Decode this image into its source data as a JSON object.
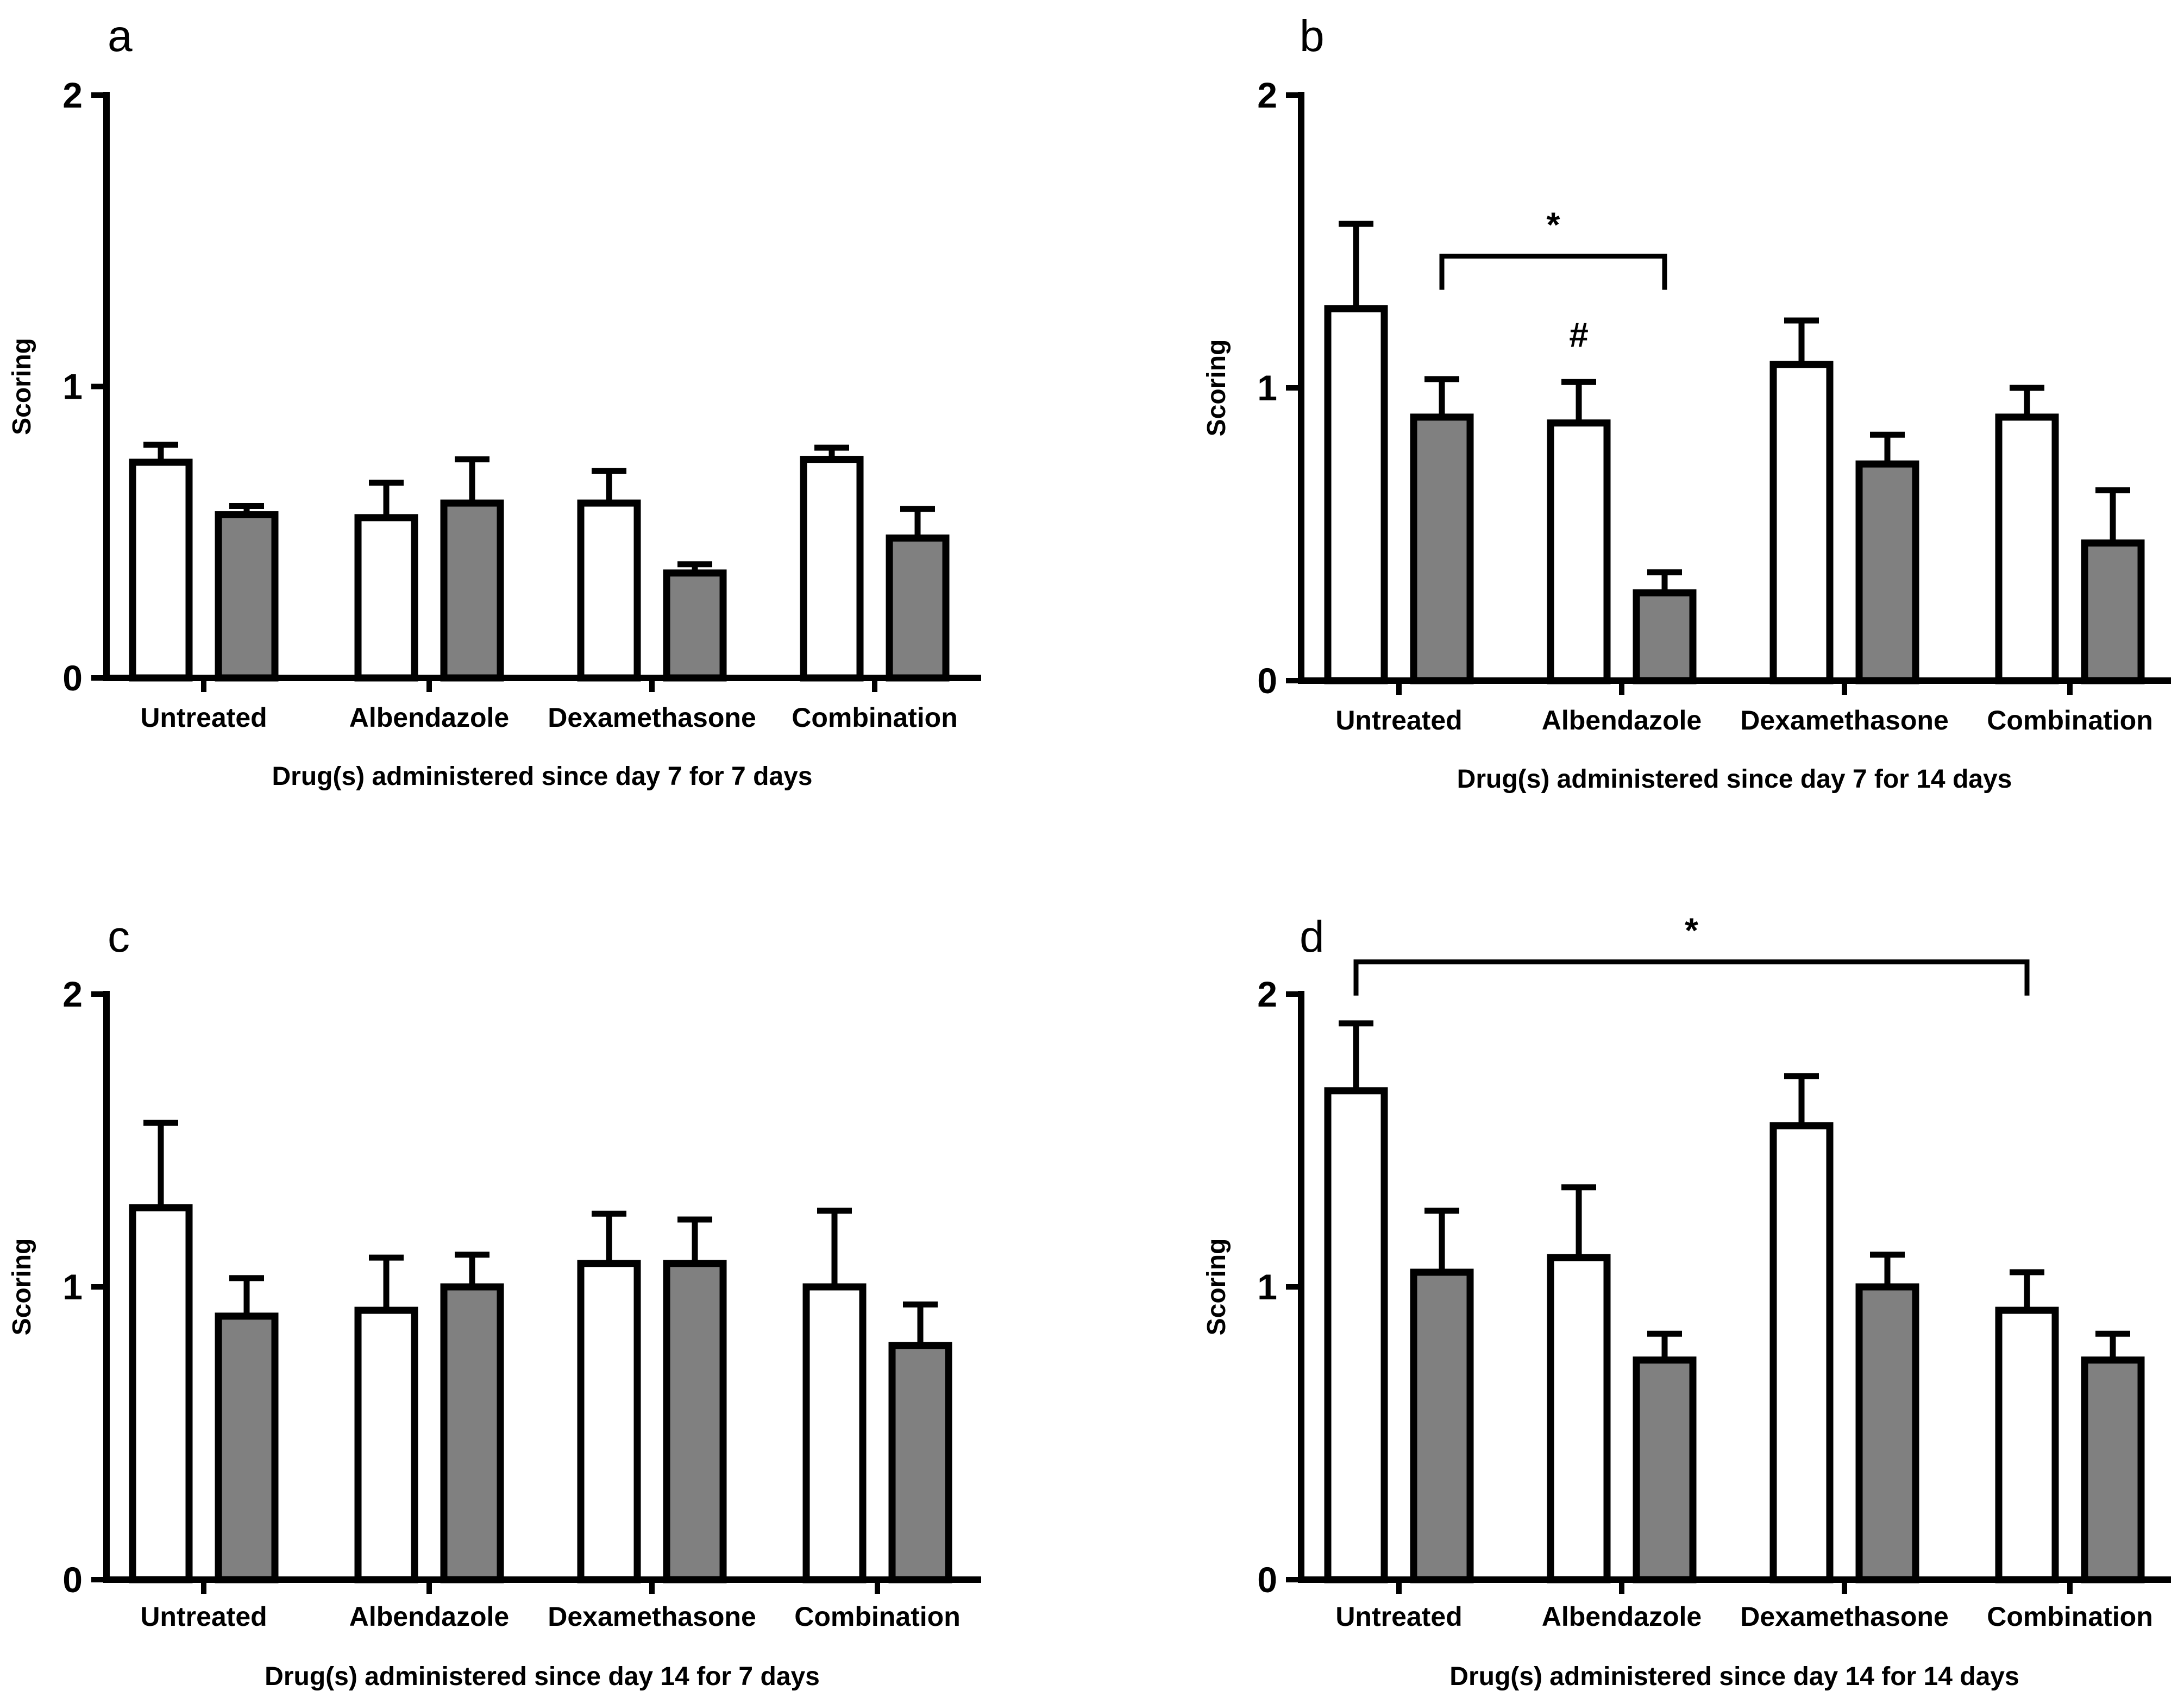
{
  "colors": {
    "series_a": "#ffffff",
    "series_b": "#808080",
    "stroke": "#000000"
  },
  "chart_data": [
    {
      "type": "bar",
      "panel": "a",
      "ylabel": "Scoring",
      "xlabel": "Drug(s) administered since day 7 for 7 days",
      "ylim": [
        0,
        2
      ],
      "yticks": [
        "0",
        "1",
        "2"
      ],
      "categories": [
        "Untreated",
        "Albendazole",
        "Dexamethasone",
        "Combination"
      ],
      "series": [
        {
          "name": "white",
          "values": [
            0.74,
            0.55,
            0.6,
            0.75
          ],
          "errors": [
            0.06,
            0.12,
            0.11,
            0.04
          ]
        },
        {
          "name": "grey",
          "values": [
            0.56,
            0.6,
            0.36,
            0.48
          ],
          "errors": [
            0.03,
            0.15,
            0.03,
            0.1
          ]
        }
      ],
      "annotations": []
    },
    {
      "type": "bar",
      "panel": "b",
      "ylabel": "Scoring",
      "xlabel": "Drug(s) administered since day 7 for 14 days",
      "ylim": [
        0,
        2
      ],
      "yticks": [
        "0",
        "1",
        "2"
      ],
      "categories": [
        "Untreated",
        "Albendazole",
        "Dexamethasone",
        "Combination"
      ],
      "series": [
        {
          "name": "white",
          "values": [
            1.27,
            0.88,
            1.08,
            0.9
          ],
          "errors": [
            0.29,
            0.14,
            0.15,
            0.1
          ]
        },
        {
          "name": "grey",
          "values": [
            0.9,
            0.3,
            0.74,
            0.47
          ],
          "errors": [
            0.13,
            0.07,
            0.1,
            0.18
          ]
        }
      ],
      "annotations": [
        {
          "type": "bracket",
          "text": "*",
          "from": {
            "category": 0,
            "series": 1
          },
          "to": {
            "category": 1,
            "series": 1
          },
          "y": 1.45
        },
        {
          "type": "marker",
          "text": "#",
          "category": 1,
          "series": 0,
          "y": 1.14
        }
      ]
    },
    {
      "type": "bar",
      "panel": "c",
      "ylabel": "Scoring",
      "xlabel": "Drug(s) administered since day 14 for 7 days",
      "ylim": [
        0,
        2
      ],
      "yticks": [
        "0",
        "1",
        "2"
      ],
      "categories": [
        "Untreated",
        "Albendazole",
        "Dexamethasone",
        "Combination"
      ],
      "series": [
        {
          "name": "white",
          "values": [
            1.27,
            0.92,
            1.08,
            1.0
          ],
          "errors": [
            0.29,
            0.18,
            0.17,
            0.26
          ]
        },
        {
          "name": "grey",
          "values": [
            0.9,
            1.0,
            1.08,
            0.8
          ],
          "errors": [
            0.13,
            0.11,
            0.15,
            0.14
          ]
        }
      ],
      "annotations": []
    },
    {
      "type": "bar",
      "panel": "d",
      "ylabel": "Scoring",
      "xlabel": "Drug(s) administered since day 14 for 14 days",
      "ylim": [
        0,
        2
      ],
      "yticks": [
        "0",
        "1",
        "2"
      ],
      "categories": [
        "Untreated",
        "Albendazole",
        "Dexamethasone",
        "Combination"
      ],
      "series": [
        {
          "name": "white",
          "values": [
            1.67,
            1.1,
            1.55,
            0.92
          ],
          "errors": [
            0.23,
            0.24,
            0.17,
            0.13
          ]
        },
        {
          "name": "grey",
          "values": [
            1.05,
            0.75,
            1.0,
            0.75
          ],
          "errors": [
            0.21,
            0.09,
            0.11,
            0.09
          ]
        }
      ],
      "annotations": [
        {
          "type": "bracket",
          "text": "*",
          "from": {
            "category": 0,
            "series": 0
          },
          "to": {
            "category": 3,
            "series": 0
          },
          "y": 2.11
        }
      ]
    }
  ]
}
